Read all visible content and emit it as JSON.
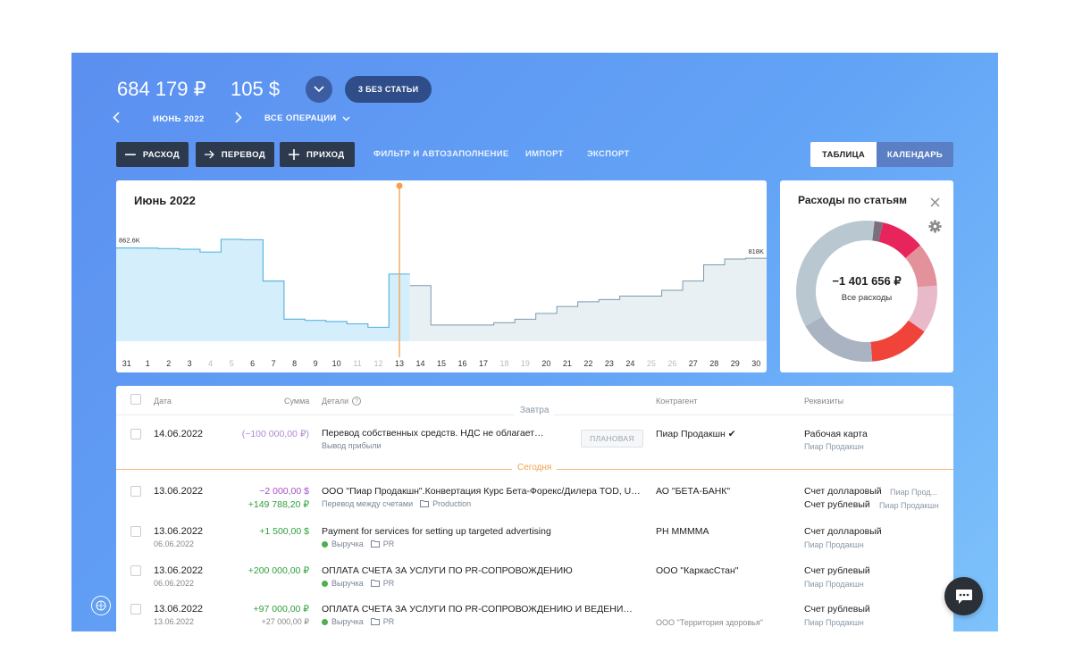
{
  "header": {
    "balance_rub": "684 179 ₽",
    "balance_usd": "105 $",
    "no_category_badge": "3 БЕЗ СТАТЬИ",
    "period": "ИЮНЬ 2022",
    "operations_filter": "ВСЕ ОПЕРАЦИИ"
  },
  "toolbar": {
    "expense": "РАСХОД",
    "transfer": "ПЕРЕВОД",
    "income": "ПРИХОД",
    "filter": "ФИЛЬТР И АВТОЗАПОЛНЕНИЕ",
    "import": "ИМПОРТ",
    "export": "ЭКСПОРТ",
    "view_table": "ТАБЛИЦА",
    "view_calendar": "КАЛЕНДАРЬ"
  },
  "chart": {
    "title": "Июнь 2022",
    "start_label": "862.6K",
    "end_label": "818K"
  },
  "chart_data": {
    "type": "area",
    "title": "Июнь 2022",
    "x": [
      "31",
      "1",
      "2",
      "3",
      "4",
      "5",
      "6",
      "7",
      "8",
      "9",
      "10",
      "11",
      "12",
      "13",
      "14",
      "15",
      "16",
      "17",
      "18",
      "19",
      "20",
      "21",
      "22",
      "23",
      "24",
      "25",
      "26",
      "27",
      "28",
      "29",
      "30"
    ],
    "values": [
      862.6,
      862,
      860,
      857,
      845,
      900,
      898,
      720,
      555,
      550,
      545,
      535,
      520,
      750,
      700,
      530,
      530,
      530,
      540,
      555,
      580,
      610,
      630,
      640,
      655,
      655,
      680,
      720,
      790,
      815,
      818
    ],
    "ylim": [
      460,
      1000
    ],
    "today_index": 13,
    "annotations": [
      "862.6K",
      "818K"
    ]
  },
  "expenses_panel": {
    "title": "Расходы по статьям",
    "total": "−1 401 656 ₽",
    "caption": "Все расходы",
    "segments": [
      {
        "value": 2,
        "color": "#7b6f7c"
      },
      {
        "value": 10,
        "color": "#e8245c"
      },
      {
        "value": 10,
        "color": "#e3929c"
      },
      {
        "value": 11,
        "color": "#e7b9c9"
      },
      {
        "value": 14,
        "color": "#f0443a"
      },
      {
        "value": 18,
        "color": "#aab3c2"
      },
      {
        "value": 35,
        "color": "#b9c7d1"
      }
    ]
  },
  "table": {
    "columns": {
      "date": "Дата",
      "amount": "Сумма",
      "details": "Детали",
      "counterparty": "Контрагент",
      "requisites": "Реквизиты"
    },
    "tomorrow": "Завтра",
    "today": "Сегодня",
    "planned_badge": "ПЛАНОВАЯ",
    "rows": [
      {
        "date": "14.06.2022",
        "amount1": "(−100 000,00 ₽)",
        "details": "Перевод собственных средств. НДС не облагается.",
        "tag": "Вывод прибыли",
        "counterparty": "Пиар Продакшн ✔",
        "req1": "Рабочая карта",
        "req2": "Пиар Продакшн"
      },
      {
        "date": "13.06.2022",
        "amount1": "−2 000,00 $",
        "amount2": "+149 788,20 ₽",
        "details": "ООО \"Пиар Продакшн\".Конвертация Курс Бета-Форекс/Дилера TOD, USD/...",
        "tag": "Перевод между счетами",
        "tag2": "Production",
        "counterparty": "АО \"БЕТА-БАНК\"",
        "req1": "Счет долларовый",
        "req1b": "Пиар Прод...",
        "req2": "Счет рублевый",
        "req2b": "Пиар Продакшн"
      },
      {
        "date": "13.06.2022",
        "date2": "06.06.2022",
        "amount1": "+1 500,00 $",
        "details": "Payment for services for setting up targeted advertising",
        "tag": "Выручка",
        "tag2": "PR",
        "counterparty": "PH MMMMA",
        "req1": "Счет долларовый",
        "req2": "Пиар Продакшн"
      },
      {
        "date": "13.06.2022",
        "date2": "06.06.2022",
        "amount1": "+200 000,00 ₽",
        "details": "ОПЛАТА СЧЕТА ЗА УСЛУГИ ПО PR-СОПРОВОЖДЕНИЮ",
        "tag": "Выручка",
        "tag2": "PR",
        "counterparty": "ООО \"КаркасСтан\"",
        "req1": "Счет рублевый",
        "req2": "Пиар Продакшн"
      },
      {
        "date": "13.06.2022",
        "date2": "13.06.2022",
        "amount1": "+97 000,00 ₽",
        "amount2": "+27 000,00 ₽",
        "details": "ОПЛАТА СЧЕТА ЗА УСЛУГИ ПО PR-СОПРОВОЖДЕНИЮ И ВЕДЕНИЮ СОЦИ...",
        "tag": "Выручка",
        "tag2": "PR",
        "counterparty": "ООО \"Территория здоровья\"",
        "req1": "Счет рублевый",
        "req2": "Пиар Продакшн"
      }
    ]
  },
  "colors": {
    "accent_dark": "#2d3a4d",
    "income": "#2e9e3a",
    "expense": "#a64fc7",
    "today_line": "#f5a04a"
  }
}
